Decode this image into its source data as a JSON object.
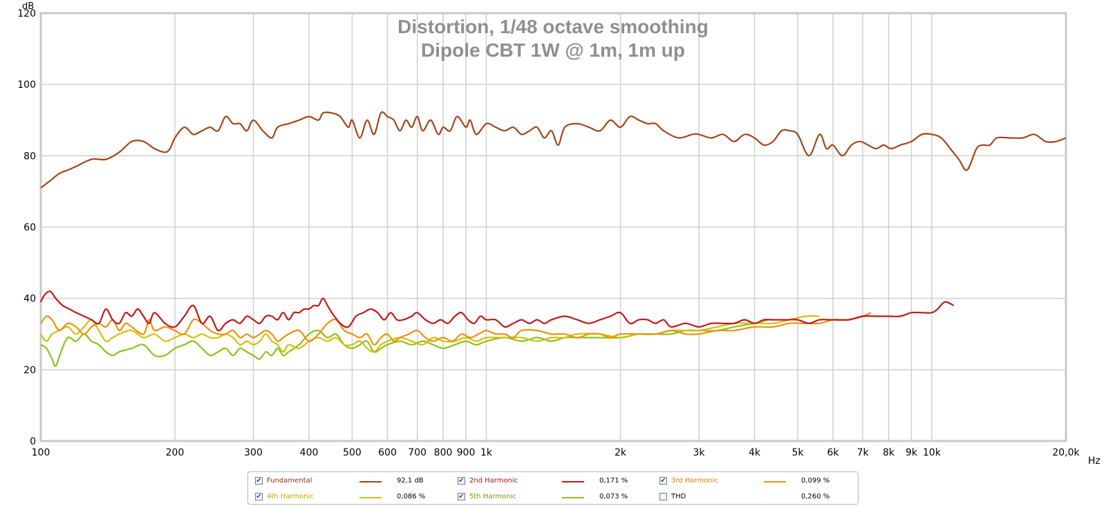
{
  "chart_data": {
    "type": "line",
    "title": "Distortion, 1/48 octave smoothing",
    "subtitle": "Dipole CBT 1W @ 1m, 1m up",
    "ylabel": "dB",
    "xlabel": "Hz",
    "xscale": "log",
    "xlim": [
      100,
      20000
    ],
    "ylim": [
      0,
      120
    ],
    "grid": true,
    "x_tick_labels": [
      "100",
      "200",
      "300",
      "400",
      "500",
      "600",
      "700",
      "800",
      "900",
      "1k",
      "2k",
      "3k",
      "4k",
      "5k",
      "6k",
      "7k",
      "8k",
      "9k",
      "10k",
      "20,0k"
    ],
    "x_ticks": [
      100,
      200,
      300,
      400,
      500,
      600,
      700,
      800,
      900,
      1000,
      2000,
      3000,
      4000,
      5000,
      6000,
      7000,
      8000,
      9000,
      10000,
      20000
    ],
    "y_ticks": [
      0,
      20,
      40,
      60,
      80,
      100,
      120
    ],
    "series": [
      {
        "name": "Fundamental",
        "color": "#a0461a",
        "x": [
          100,
          105,
          110,
          115,
          120,
          130,
          140,
          150,
          160,
          170,
          180,
          190,
          195,
          200,
          210,
          220,
          230,
          240,
          250,
          260,
          270,
          280,
          290,
          300,
          315,
          330,
          340,
          360,
          380,
          400,
          420,
          430,
          450,
          470,
          490,
          500,
          520,
          540,
          560,
          580,
          600,
          620,
          640,
          660,
          680,
          700,
          720,
          750,
          780,
          800,
          830,
          860,
          900,
          920,
          950,
          1000,
          1050,
          1100,
          1150,
          1200,
          1250,
          1300,
          1350,
          1400,
          1450,
          1500,
          1600,
          1700,
          1800,
          1900,
          2000,
          2100,
          2200,
          2300,
          2400,
          2500,
          2700,
          2900,
          3000,
          3200,
          3400,
          3600,
          3800,
          4000,
          4200,
          4400,
          4600,
          4800,
          5000,
          5300,
          5600,
          5800,
          6000,
          6300,
          6600,
          6900,
          7200,
          7500,
          7800,
          8100,
          8500,
          9000,
          9500,
          10000,
          10500,
          11000,
          11500,
          12000,
          12600,
          13000,
          13500,
          14000,
          15000,
          16000,
          17000,
          18000,
          19000,
          20000
        ],
        "y": [
          71,
          73,
          75,
          76,
          77,
          79,
          79,
          81,
          84,
          84,
          82,
          81,
          82,
          85,
          88,
          86,
          87,
          88,
          87,
          91,
          89,
          89,
          87,
          90,
          87,
          85,
          88,
          89,
          90,
          91,
          90,
          92,
          92,
          91,
          88,
          90,
          85,
          90,
          86,
          92,
          91,
          90,
          87,
          90,
          88,
          91,
          87,
          90,
          86,
          88,
          87,
          91,
          88,
          90,
          86,
          89,
          88,
          87,
          88,
          86,
          87,
          88,
          85,
          87,
          83,
          88,
          89,
          88,
          87,
          90,
          88,
          91,
          90,
          89,
          89,
          87,
          85,
          86,
          86,
          85,
          86,
          84,
          86,
          85,
          83,
          84,
          87,
          87,
          86,
          80,
          86,
          82,
          83,
          80,
          83,
          84,
          83,
          82,
          83,
          82,
          83,
          84,
          86,
          86,
          85,
          82,
          79,
          76,
          82,
          83,
          83,
          85,
          85,
          85,
          86,
          84,
          84,
          85
        ]
      },
      {
        "name": "2nd Harmonic",
        "color": "#c0171a",
        "x": [
          100,
          102,
          105,
          108,
          112,
          116,
          120,
          125,
          130,
          135,
          140,
          145,
          150,
          155,
          160,
          165,
          170,
          175,
          180,
          190,
          200,
          210,
          220,
          230,
          240,
          250,
          260,
          270,
          280,
          290,
          300,
          310,
          320,
          330,
          340,
          350,
          360,
          370,
          380,
          390,
          400,
          410,
          420,
          430,
          440,
          450,
          470,
          490,
          510,
          530,
          550,
          570,
          590,
          610,
          630,
          650,
          680,
          700,
          730,
          760,
          790,
          820,
          850,
          880,
          910,
          940,
          970,
          1000,
          1050,
          1100,
          1150,
          1200,
          1250,
          1300,
          1350,
          1400,
          1500,
          1600,
          1700,
          1800,
          1900,
          2000,
          2100,
          2200,
          2300,
          2400,
          2500,
          2600,
          2800,
          3000,
          3200,
          3400,
          3600,
          3800,
          4000,
          4200,
          4400,
          4700,
          5000,
          5300,
          5600,
          6000,
          6500,
          7000,
          7500,
          8000,
          8500,
          9000,
          9500,
          10000,
          10300,
          10700,
          11200
        ],
        "y": [
          39,
          41,
          42,
          40,
          38,
          37,
          36,
          35,
          34,
          33,
          37,
          34,
          33,
          36,
          35,
          37,
          35,
          33,
          36,
          33,
          32,
          35,
          38,
          33,
          35,
          31,
          33,
          34,
          33,
          35,
          34,
          33,
          35,
          35,
          34,
          36,
          34,
          36,
          36,
          37,
          37,
          38,
          38,
          40,
          38,
          36,
          33,
          32,
          35,
          36,
          37,
          36,
          34,
          36,
          34,
          34,
          35,
          36,
          34,
          33,
          34,
          33,
          35,
          36,
          34,
          33,
          35,
          34,
          34,
          32,
          33,
          34,
          33,
          34,
          33,
          34,
          35,
          34,
          33,
          34,
          35,
          36,
          33,
          34,
          34,
          33,
          34,
          32,
          33,
          32,
          33,
          33,
          33,
          34,
          33,
          34,
          34,
          34,
          34,
          33,
          34,
          34,
          34,
          35,
          35,
          35,
          35,
          36,
          36,
          36,
          37,
          39,
          38
        ]
      },
      {
        "name": "3rd Harmonic",
        "color": "#f0900a",
        "x": [
          100,
          103,
          106,
          110,
          115,
          120,
          125,
          130,
          135,
          140,
          145,
          150,
          155,
          160,
          170,
          175,
          180,
          190,
          200,
          210,
          220,
          230,
          240,
          250,
          260,
          270,
          280,
          290,
          300,
          310,
          320,
          330,
          340,
          350,
          360,
          380,
          400,
          420,
          440,
          460,
          480,
          500,
          520,
          540,
          560,
          580,
          600,
          620,
          640,
          670,
          700,
          730,
          760,
          800,
          840,
          880,
          920,
          960,
          1000,
          1050,
          1100,
          1150,
          1200,
          1300,
          1400,
          1500,
          1600,
          1700,
          1800,
          1900,
          2000,
          2200,
          2400,
          2600,
          2800,
          3000,
          3300,
          3600,
          4000,
          4400,
          4800,
          5200,
          5600,
          6000,
          6500,
          7000,
          7300
        ],
        "y": [
          33,
          35,
          34,
          31,
          33,
          32,
          30,
          32,
          33,
          32,
          34,
          31,
          33,
          32,
          30,
          34,
          31,
          32,
          31,
          30,
          34,
          33,
          31,
          30,
          30,
          31,
          29,
          30,
          29,
          30,
          31,
          30,
          28,
          29,
          30,
          31,
          28,
          30,
          33,
          34,
          31,
          30,
          29,
          30,
          27,
          29,
          30,
          28,
          29,
          30,
          31,
          29,
          28,
          29,
          28,
          30,
          29,
          30,
          31,
          30,
          30,
          29,
          31,
          31,
          30,
          30,
          29,
          30,
          30,
          29,
          30,
          30,
          30,
          31,
          30,
          30,
          31,
          31,
          32,
          32,
          33,
          33,
          33,
          34,
          34,
          35,
          36
        ]
      },
      {
        "name": "4th Harmonic",
        "color": "#d1c10a",
        "x": [
          100,
          103,
          106,
          110,
          115,
          120,
          125,
          130,
          135,
          140,
          145,
          150,
          160,
          170,
          180,
          190,
          200,
          210,
          220,
          230,
          240,
          250,
          260,
          270,
          280,
          290,
          300,
          310,
          320,
          330,
          340,
          350,
          360,
          380,
          400,
          420,
          440,
          460,
          480,
          500,
          520,
          540,
          560,
          580,
          600,
          640,
          680,
          720,
          760,
          800,
          850,
          900,
          950,
          1000,
          1100,
          1200,
          1300,
          1400,
          1500,
          1600,
          1800,
          2000,
          2200,
          2400,
          2600,
          2800,
          3000,
          3300,
          3600,
          4000,
          4400,
          4800,
          5200,
          5600
        ],
        "y": [
          30,
          28,
          30,
          31,
          32,
          30,
          32,
          34,
          31,
          28,
          29,
          30,
          31,
          29,
          30,
          28,
          29,
          30,
          29,
          30,
          29,
          29,
          30,
          29,
          27,
          28,
          27,
          28,
          30,
          28,
          27,
          25,
          27,
          26,
          28,
          29,
          28,
          29,
          27,
          27,
          28,
          26,
          25,
          27,
          28,
          29,
          28,
          27,
          29,
          28,
          28,
          29,
          28,
          29,
          29,
          29,
          28,
          29,
          29,
          30,
          30,
          29,
          30,
          30,
          31,
          31,
          31,
          32,
          33,
          33,
          33,
          34,
          35,
          35
        ]
      },
      {
        "name": "5th Harmonic",
        "color": "#8bc21a",
        "x": [
          100,
          103,
          106,
          108,
          111,
          115,
          120,
          125,
          130,
          135,
          140,
          145,
          150,
          160,
          170,
          180,
          190,
          200,
          210,
          220,
          230,
          240,
          250,
          260,
          270,
          280,
          290,
          300,
          310,
          320,
          330,
          340,
          350,
          360,
          380,
          400,
          420,
          440,
          460,
          480,
          500,
          520,
          540,
          560,
          580,
          600,
          640,
          680,
          720,
          760,
          800,
          850,
          900,
          950,
          1000,
          1100,
          1200,
          1300,
          1400,
          1500,
          1600,
          1800,
          2000,
          2200,
          2400,
          2600,
          2800,
          3000,
          3300,
          3600,
          4000,
          4300
        ],
        "y": [
          27,
          26,
          23,
          21,
          25,
          29,
          28,
          30,
          28,
          27,
          25,
          24,
          25,
          26,
          27,
          24,
          24,
          26,
          27,
          28,
          26,
          24,
          25,
          26,
          24,
          26,
          25,
          24,
          23,
          25,
          24,
          26,
          24,
          25,
          27,
          30,
          31,
          29,
          30,
          27,
          26,
          27,
          28,
          25,
          26,
          27,
          28,
          27,
          28,
          27,
          26,
          27,
          28,
          27,
          28,
          29,
          28,
          29,
          28,
          29,
          29,
          29,
          29,
          30,
          30,
          30,
          31,
          31,
          31,
          32,
          33,
          34
        ]
      }
    ]
  },
  "legend": {
    "items": [
      {
        "label": "Fundamental",
        "value": "92,1 dB",
        "checked": true,
        "color": "#a0461a",
        "text_color": "#8b2e12"
      },
      {
        "label": "2nd Harmonic",
        "value": "0,171 %",
        "checked": true,
        "color": "#c0171a",
        "text_color": "#b01010"
      },
      {
        "label": "3rd Harmonic",
        "value": "0,099 %",
        "checked": true,
        "color": "#f0900a",
        "text_color": "#e07c00"
      },
      {
        "label": "4th Harmonic",
        "value": "0,086 %",
        "checked": true,
        "color": "#d1c10a",
        "text_color": "#b8a800"
      },
      {
        "label": "5th Harmonic",
        "value": "0,073 %",
        "checked": true,
        "color": "#8bc21a",
        "text_color": "#6aa000"
      },
      {
        "label": "THD",
        "value": "0,260 %",
        "checked": false,
        "color": "",
        "text_color": "#000000"
      }
    ]
  }
}
